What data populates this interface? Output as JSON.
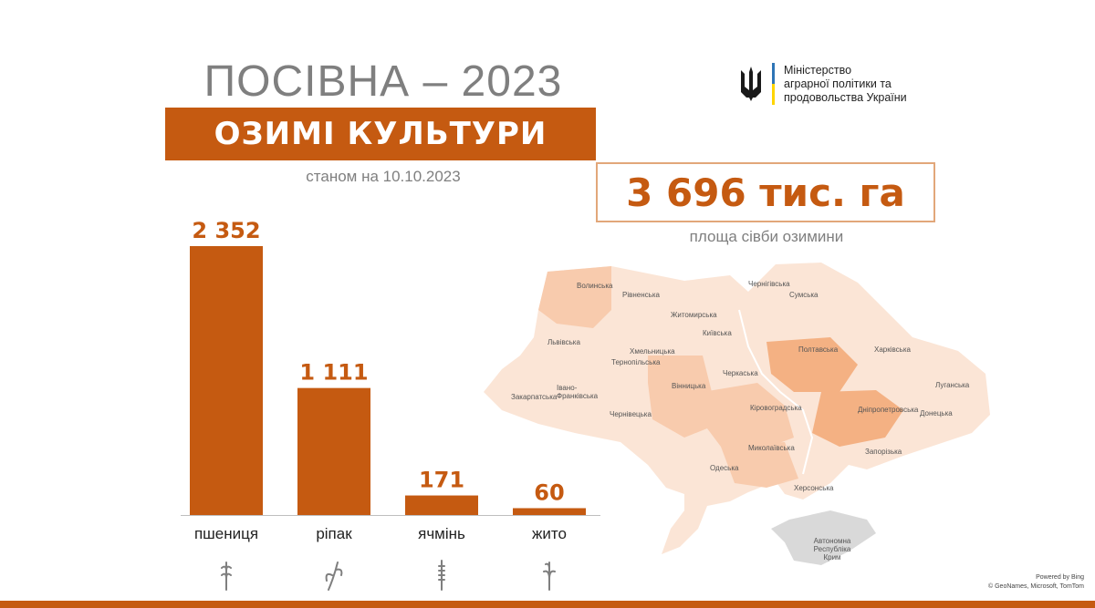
{
  "header": {
    "title": "ПОСІВНА – 2023",
    "subtitle": "ОЗИМІ КУЛЬТУРИ",
    "date": "станом на 10.10.2023"
  },
  "ministry": {
    "line1": "Міністерство",
    "line2": "аграрної політики та",
    "line3": "продовольства України",
    "icon": "trident-icon"
  },
  "total": {
    "value": "3 696 тис. га",
    "label": "площа сівби озимини"
  },
  "chart_data": {
    "type": "bar",
    "categories": [
      "пшениця",
      "ріпак",
      "ячмінь",
      "жито"
    ],
    "values": [
      2352,
      1111,
      171,
      60
    ],
    "value_labels": [
      "2 352",
      "1 111",
      "171",
      "60"
    ],
    "icons": [
      "wheat-icon",
      "rapeseed-icon",
      "barley-icon",
      "rye-icon"
    ],
    "unit": "тис. га",
    "color": "#c55a11",
    "title": "",
    "xlabel": "",
    "ylabel": "",
    "grid": false
  },
  "map": {
    "regions": [
      "Волинська",
      "Рівненська",
      "Житомирська",
      "Чернігівська",
      "Сумська",
      "Київська",
      "Львівська",
      "Хмельницька",
      "Тернопільська",
      "Полтавська",
      "Харківська",
      "Луганська",
      "Івано-Франківська",
      "Вінницька",
      "Черкаська",
      "Закарпатська",
      "Чернівецька",
      "Кіровоградська",
      "Дніпропетровська",
      "Донецька",
      "Миколаївська",
      "Запорізька",
      "Одеська",
      "Херсонська",
      "Автономна Республіка Крим"
    ],
    "credits": {
      "line1": "Powered by Bing",
      "line2": "© GeoNames, Microsoft, TomTom"
    }
  },
  "colors": {
    "accent": "#c55a11",
    "text_gray": "#7f7f7f",
    "map_light": "#fbe5d6",
    "map_mid": "#f8cbad",
    "map_dark": "#f4b183",
    "crimea": "#d9d9d9"
  }
}
